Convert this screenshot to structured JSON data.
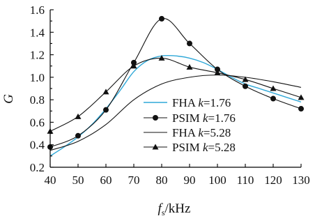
{
  "chart_data": {
    "type": "line",
    "xlabel_main": "f",
    "xlabel_sub": "s",
    "xlabel_unit": "/kHz",
    "ylabel": "G",
    "xlim": [
      40,
      130
    ],
    "ylim": [
      0.2,
      1.6
    ],
    "x_ticks": [
      40,
      50,
      60,
      70,
      80,
      90,
      100,
      110,
      120,
      130
    ],
    "y_ticks": [
      "0.2",
      "0.4",
      "0.6",
      "0.8",
      "1.0",
      "1.2",
      "1.4",
      "1.6"
    ],
    "legend_position": "center-right",
    "series": [
      {
        "name_prefix": "FHA",
        "name": "FHA k=1.76",
        "k_value": "=1.76",
        "color": "#2fa8d8",
        "marker": "none",
        "x": [
          40,
          45,
          50,
          55,
          60,
          65,
          70,
          75,
          80,
          85,
          90,
          95,
          100,
          105,
          110,
          115,
          120,
          125,
          130
        ],
        "values": [
          0.3,
          0.38,
          0.47,
          0.58,
          0.72,
          0.88,
          1.05,
          1.15,
          1.19,
          1.19,
          1.17,
          1.13,
          1.07,
          1.0,
          0.94,
          0.9,
          0.86,
          0.82,
          0.78
        ]
      },
      {
        "name_prefix": "PSIM",
        "name": "PSIM k=1.76",
        "k_value": "=1.76",
        "color": "#111111",
        "marker": "circle",
        "x": [
          40,
          50,
          60,
          70,
          80,
          90,
          100,
          110,
          120,
          130
        ],
        "values": [
          0.38,
          0.48,
          0.71,
          1.13,
          1.52,
          1.3,
          1.07,
          0.92,
          0.81,
          0.72
        ]
      },
      {
        "name_prefix": "FHA",
        "name": "FHA k=5.28",
        "k_value": "=5.28",
        "color": "#111111",
        "marker": "none",
        "x": [
          40,
          50,
          60,
          70,
          80,
          90,
          100,
          110,
          120,
          130
        ],
        "values": [
          0.35,
          0.43,
          0.58,
          0.8,
          0.94,
          1.0,
          1.02,
          1.0,
          0.96,
          0.91
        ]
      },
      {
        "name_prefix": "PSIM",
        "name": "PSIM k=5.28",
        "k_value": "=5.28",
        "color": "#111111",
        "marker": "triangle",
        "x": [
          40,
          50,
          60,
          70,
          80,
          90,
          100,
          110,
          120,
          130
        ],
        "values": [
          0.52,
          0.65,
          0.87,
          1.1,
          1.17,
          1.09,
          1.04,
          0.98,
          0.9,
          0.82
        ]
      }
    ]
  }
}
